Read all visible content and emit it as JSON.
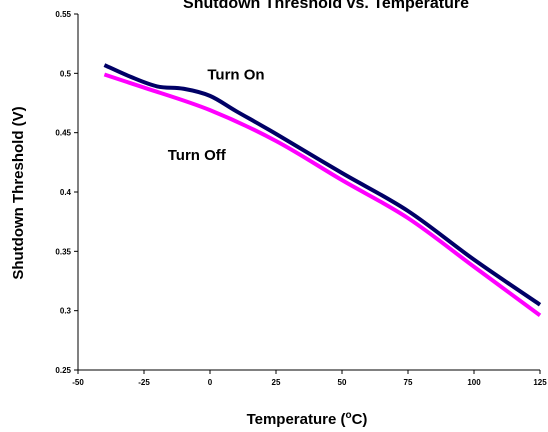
{
  "chart_data": {
    "type": "line",
    "title": "Shutdown Threshold vs. Temperature",
    "xlabel_main": "Temperature (",
    "xlabel_super": "o",
    "xlabel_tail": "C)",
    "ylabel": "Shutdown Threshold (V)",
    "xlim": [
      -50,
      125
    ],
    "ylim": [
      0.25,
      0.55
    ],
    "x_ticks": [
      -50,
      -25,
      0,
      25,
      50,
      75,
      100,
      125
    ],
    "x_tick_labels": [
      "-50",
      "-25",
      "0",
      "25",
      "50",
      "75",
      "100",
      "125"
    ],
    "y_ticks": [
      0.25,
      0.3,
      0.35,
      0.4,
      0.45,
      0.5,
      0.55
    ],
    "y_tick_labels": [
      "0.25",
      "0.3",
      "0.35",
      "0.4",
      "0.45",
      "0.5",
      "0.55"
    ],
    "grid": false,
    "series": [
      {
        "name": "Turn On",
        "color": "#000066",
        "x": [
          -40,
          -30,
          -20,
          -10,
          0,
          10,
          25,
          50,
          75,
          100,
          125
        ],
        "y": [
          0.507,
          0.497,
          0.489,
          0.487,
          0.481,
          0.468,
          0.449,
          0.416,
          0.384,
          0.343,
          0.305
        ]
      },
      {
        "name": "Turn Off",
        "color": "#ff00ff",
        "x": [
          -40,
          -25,
          0,
          25,
          50,
          75,
          100,
          125
        ],
        "y": [
          0.499,
          0.488,
          0.469,
          0.443,
          0.41,
          0.378,
          0.337,
          0.296
        ]
      }
    ],
    "annotations": [
      {
        "text": "Turn On",
        "x": -1,
        "y": 0.495
      },
      {
        "text": "Turn Off",
        "x": -16,
        "y": 0.427
      }
    ]
  }
}
